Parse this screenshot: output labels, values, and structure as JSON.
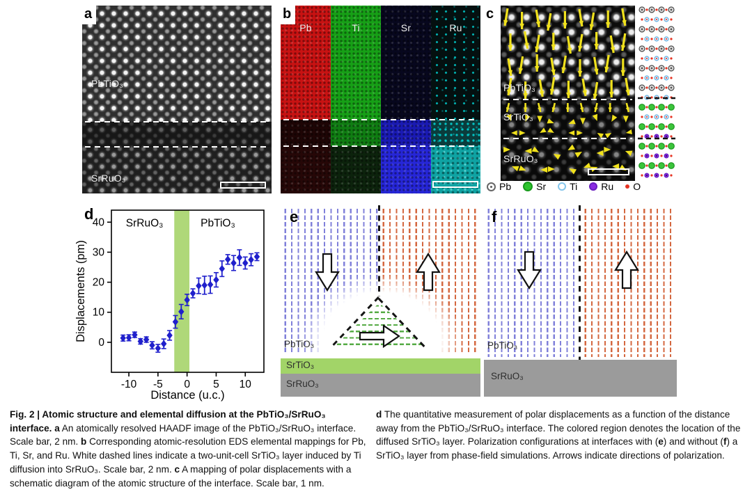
{
  "panel_a": {
    "label": "a",
    "region_top": "PbTiO₃",
    "region_bottom": "SrRuO₃"
  },
  "panel_b": {
    "label": "b",
    "elements": [
      "Pb",
      "Ti",
      "Sr",
      "Ru"
    ]
  },
  "panel_c": {
    "label": "c",
    "region_top": "PbTiO₃",
    "region_mid": "SrTiO₃",
    "region_bottom": "SrRuO₃",
    "legend": [
      {
        "name": "Pb"
      },
      {
        "name": "Sr"
      },
      {
        "name": "Ti"
      },
      {
        "name": "Ru"
      },
      {
        "name": "O"
      }
    ]
  },
  "panel_d": {
    "label": "d"
  },
  "panel_e": {
    "label": "e",
    "region_film": "PbTiO₃",
    "region_layer": "SrTiO₃",
    "region_substrate": "SrRuO₃"
  },
  "panel_f": {
    "label": "f",
    "region_film": "PbTiO₃",
    "region_substrate": "SrRuO₃"
  },
  "colors": {
    "map_pb": "#c81212",
    "map_ti": "#16a016",
    "map_sr": "#2626d8",
    "map_ru": "#0fa3a3",
    "arrow_yellow": "#f0e11c",
    "marker_blue": "#2020cc",
    "band_green": "#a6d46a",
    "srtio3_bar": "#a2d468",
    "srruo3_bar": "#9b9b9b",
    "pol_down_blue": "#8080da",
    "pol_up_red": "#d4673f",
    "pol_lateral_green": "#56ab45",
    "legend_pb": "#666666",
    "legend_sr": "#2ec42e",
    "legend_ti": "#85c6ec",
    "legend_ru": "#8a2be2",
    "legend_o": "#e63322"
  },
  "chart_data": {
    "type": "scatter",
    "title": "",
    "xlabel": "Distance (u.c.)",
    "ylabel": "Displacements (pm)",
    "xlim": [
      -13.0,
      13.2
    ],
    "ylim": [
      -10,
      44
    ],
    "xticks": [
      -10,
      -5,
      0,
      5,
      10
    ],
    "yticks": [
      0,
      10,
      20,
      30,
      40
    ],
    "grid": false,
    "marker": "diamond",
    "marker_color": "#2020cc",
    "band": {
      "x0": -2.2,
      "x1": 0.4,
      "color": "#a6d46a",
      "meaning": "diffused SrTiO₃ layer"
    },
    "annotations": [
      {
        "text": "SrRuO₃",
        "x": -7.3,
        "y": 38.5
      },
      {
        "text": "PbTiO₃",
        "x": 5.3,
        "y": 38.5
      }
    ],
    "points": {
      "x": [
        -11,
        -10,
        -9,
        -8,
        -7,
        -6,
        -5,
        -4,
        -3,
        -2,
        -1,
        0,
        1,
        2,
        3,
        4,
        5,
        6,
        7,
        8,
        9,
        10,
        11,
        12
      ],
      "y": [
        1.4,
        1.5,
        2.5,
        0.3,
        0.9,
        -1.0,
        -2.0,
        -0.5,
        2.3,
        6.8,
        10.2,
        14.1,
        16.3,
        18.8,
        19.0,
        19.2,
        20.8,
        24.5,
        27.6,
        26.4,
        28.2,
        26.4,
        27.5,
        28.5
      ],
      "yerr": [
        1.0,
        1.0,
        0.9,
        0.9,
        0.9,
        1.2,
        1.3,
        1.6,
        1.6,
        2.1,
        2.4,
        1.9,
        1.5,
        2.6,
        3.0,
        2.9,
        2.4,
        2.6,
        1.6,
        2.5,
        2.6,
        2.0,
        2.0,
        1.3
      ]
    }
  },
  "caption": {
    "left": [
      {
        "text": "Fig. 2 | Atomic structure and elemental diffusion at the PbTiO₃/SrRuO₃ interface. ",
        "bold": true
      },
      {
        "text": "a",
        "bold": true
      },
      {
        "text": " An atomically resolved HAADF image of the PbTiO₃/SrRuO₃ interface. Scale bar, 2 nm. ",
        "bold": false
      },
      {
        "text": "b",
        "bold": true
      },
      {
        "text": " Corresponding atomic-resolution EDS elemental mappings for Pb, Ti, Sr, and Ru. White dashed lines indicate a two-unit-cell SrTiO₃ layer induced by Ti diffusion into SrRuO₃. Scale bar, 2 nm. ",
        "bold": false
      },
      {
        "text": "c",
        "bold": true
      },
      {
        "text": " A mapping of polar displacements with a schematic diagram of the atomic structure of the interface. Scale bar, 1 nm.",
        "bold": false
      }
    ],
    "right": [
      {
        "text": "d",
        "bold": true
      },
      {
        "text": " The quantitative measurement of polar displacements as a function of the distance away from the PbTiO₃/SrRuO₃ interface. The colored region denotes the location of the diffused SrTiO₃ layer. Polarization configurations at interfaces with (",
        "bold": false
      },
      {
        "text": "e",
        "bold": true
      },
      {
        "text": ") and without (",
        "bold": false
      },
      {
        "text": "f",
        "bold": true
      },
      {
        "text": ") a SrTiO₃ layer from phase-field simulations. Arrows indicate directions of polarization.",
        "bold": false
      }
    ]
  }
}
